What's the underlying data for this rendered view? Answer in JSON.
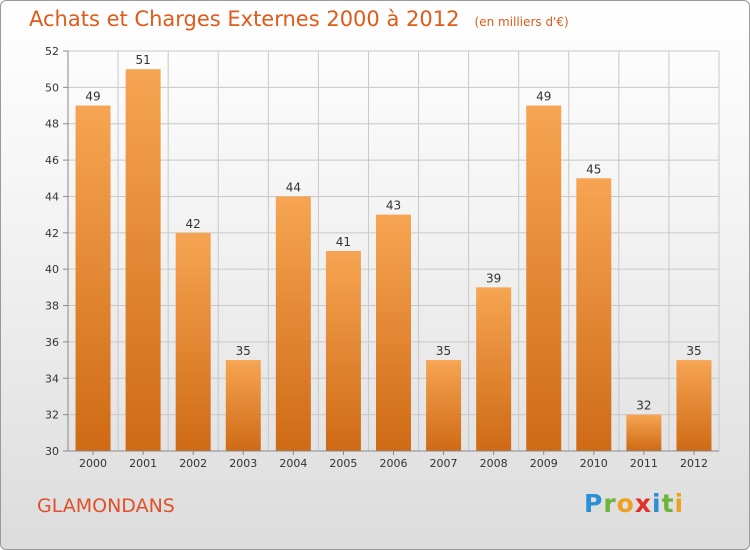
{
  "title": "Achats et Charges Externes 2000 à 2012",
  "unit_note": "(en milliers d'€)",
  "commune": "GLAMONDANS",
  "logo": {
    "text": "Proxiti",
    "letters": [
      {
        "ch": "P",
        "color": "#2a8fd4"
      },
      {
        "ch": "r",
        "color": "#6bb539"
      },
      {
        "ch": "o",
        "color": "#f0a020"
      },
      {
        "ch": "x",
        "color": "#e0302a"
      },
      {
        "ch": "i",
        "color": "#2a8fd4"
      },
      {
        "ch": "t",
        "color": "#6bb539"
      },
      {
        "ch": "i",
        "color": "#f0a020"
      }
    ]
  },
  "colors": {
    "title": "#e05a1a",
    "bar_light": "#f6a552",
    "bar_dark": "#cf6a15",
    "grid": "#c8c8c8",
    "axis_text": "#333333"
  },
  "chart_data": {
    "type": "bar",
    "categories": [
      "2000",
      "2001",
      "2002",
      "2003",
      "2004",
      "2005",
      "2006",
      "2007",
      "2008",
      "2009",
      "2010",
      "2011",
      "2012"
    ],
    "values": [
      49,
      51,
      42,
      35,
      44,
      41,
      43,
      35,
      39,
      49,
      45,
      32,
      35
    ],
    "ylim": [
      30,
      52
    ],
    "yticks": [
      30,
      32,
      34,
      36,
      38,
      40,
      42,
      44,
      46,
      48,
      50,
      52
    ],
    "grid": true,
    "xlabel": "",
    "ylabel": ""
  }
}
